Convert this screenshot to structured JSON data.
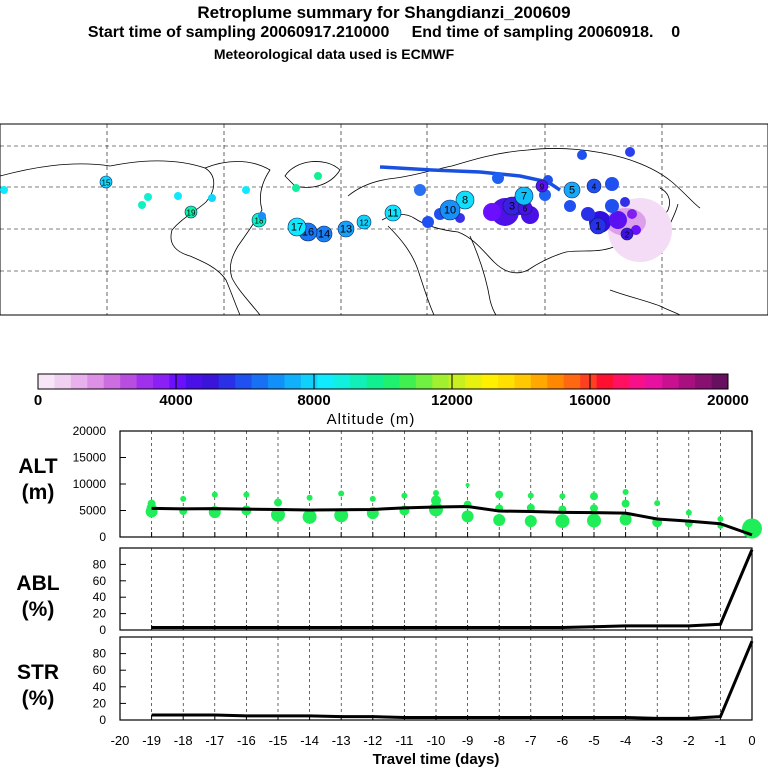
{
  "header": {
    "title": "Retroplume summary for Shangdianzi_200609",
    "start_label": "Start time of sampling 20060917.210000",
    "end_label": "End time of sampling 20060918.",
    "end_value": "0",
    "met_label": "Meteorological data used is ECMWF"
  },
  "colorbar": {
    "title": "Altitude (m)",
    "ticks": [
      "0",
      "4000",
      "8000",
      "12000",
      "16000",
      "20000"
    ],
    "colors": [
      "#f7e6f7",
      "#f0d0f0",
      "#e8b0ec",
      "#de90e6",
      "#cc6ee0",
      "#b84ee0",
      "#a030ee",
      "#8a20f4",
      "#6a10ff",
      "#4a10e8",
      "#3a14d8",
      "#2a30e8",
      "#2050f0",
      "#1870f4",
      "#1090f8",
      "#10b0fa",
      "#10d0fc",
      "#10ecfe",
      "#10f0e0",
      "#10f0b8",
      "#10f090",
      "#20f070",
      "#40f050",
      "#70f040",
      "#a0f030",
      "#c8f020",
      "#e8f010",
      "#fff000",
      "#ffe000",
      "#ffc800",
      "#ffa800",
      "#ff8800",
      "#ff6810",
      "#ff4020",
      "#ff1030",
      "#ff1060",
      "#f8108a",
      "#e810a0",
      "#c81090",
      "#a81080",
      "#881070",
      "#681060"
    ]
  },
  "map": {
    "markers": [
      {
        "label": "1",
        "color": "#2830e8"
      },
      {
        "label": "2",
        "color": "#4010e0"
      },
      {
        "label": "3",
        "color": "#3a20e0"
      },
      {
        "label": "4",
        "color": "#2050f0"
      },
      {
        "label": "5",
        "color": "#18a8f8"
      },
      {
        "label": "6",
        "color": "#4a10e8"
      },
      {
        "label": "7",
        "color": "#10c0fa"
      },
      {
        "label": "8",
        "color": "#10e0fd"
      },
      {
        "label": "9",
        "color": "#5a10f0"
      },
      {
        "label": "10",
        "color": "#1890f8"
      },
      {
        "label": "11",
        "color": "#10e4fe"
      },
      {
        "label": "12",
        "color": "#10d0fc"
      },
      {
        "label": "13",
        "color": "#18a0f8"
      },
      {
        "label": "14",
        "color": "#1880f4"
      },
      {
        "label": "15",
        "color": "#10d8fc"
      },
      {
        "label": "16",
        "color": "#1878f4"
      },
      {
        "label": "17",
        "color": "#10e8fe"
      },
      {
        "label": "18",
        "color": "#10f0c0"
      },
      {
        "label": "19",
        "color": "#10f0a8"
      }
    ]
  },
  "chart_data": [
    {
      "type": "scatter",
      "panel": "ALT",
      "ylabel_line1": "ALT",
      "ylabel_line2": "(m)",
      "ylim": [
        0,
        20000
      ],
      "yticks": [
        0,
        5000,
        10000,
        15000,
        20000
      ],
      "mean_x": [
        -19,
        -18,
        -17,
        -16,
        -15,
        -14,
        -13,
        -12,
        -11,
        -10,
        -9,
        -8,
        -7,
        -6,
        -5,
        -4,
        -3,
        -2,
        -1,
        0
      ],
      "mean_y": [
        5400,
        5300,
        5350,
        5250,
        5200,
        5100,
        5150,
        5200,
        5500,
        5650,
        5750,
        4900,
        4800,
        4650,
        4600,
        4500,
        3400,
        3000,
        2500,
        400
      ],
      "plume_x": [
        -19,
        -19,
        -19,
        -18,
        -18,
        -17,
        -17,
        -16,
        -16,
        -15,
        -15,
        -14,
        -14,
        -13,
        -13,
        -12,
        -12,
        -11,
        -11,
        -10,
        -10,
        -10,
        -9,
        -9,
        -9,
        -8,
        -8,
        -8,
        -7,
        -7,
        -7,
        -6,
        -6,
        -6,
        -5,
        -5,
        -5,
        -4,
        -4,
        -4,
        -3,
        -3,
        -2,
        -2,
        -1,
        -1,
        0
      ],
      "plume_y": [
        4800,
        6300,
        5500,
        4900,
        7200,
        4700,
        8000,
        5000,
        8000,
        4200,
        6500,
        3800,
        7400,
        4100,
        8200,
        4500,
        7200,
        5000,
        7800,
        5200,
        6900,
        8300,
        3900,
        6100,
        9800,
        3200,
        5400,
        8000,
        3000,
        5500,
        7800,
        3000,
        5200,
        7700,
        3100,
        5400,
        7700,
        3300,
        6300,
        8500,
        2800,
        6400,
        2600,
        4600,
        2100,
        3400,
        1600
      ],
      "plume_r": [
        6,
        4,
        5,
        4,
        3,
        6,
        3,
        5,
        3,
        7,
        4,
        7,
        3,
        7,
        3,
        6,
        3,
        5,
        3,
        7,
        5,
        3,
        6,
        4,
        2,
        6,
        4,
        4,
        6,
        4,
        3,
        7,
        4,
        3,
        7,
        4,
        4,
        6,
        4,
        3,
        5,
        3,
        4,
        3,
        3,
        3,
        10
      ]
    },
    {
      "type": "line",
      "panel": "ABL",
      "ylabel_line1": "ABL",
      "ylabel_line2": "(%)",
      "ylim": [
        0,
        100
      ],
      "yticks": [
        0,
        20,
        40,
        60,
        80
      ],
      "x": [
        -19,
        -18,
        -17,
        -16,
        -15,
        -14,
        -13,
        -12,
        -11,
        -10,
        -9,
        -8,
        -7,
        -6,
        -5,
        -4,
        -3,
        -2,
        -1,
        0
      ],
      "y": [
        3,
        3,
        3,
        3,
        3,
        3,
        3,
        3,
        3,
        3,
        3,
        3,
        3,
        3,
        4,
        5,
        5,
        5,
        7,
        98
      ]
    },
    {
      "type": "line",
      "panel": "STR",
      "ylabel_line1": "STR",
      "ylabel_line2": "(%)",
      "ylim": [
        0,
        100
      ],
      "yticks": [
        0,
        20,
        40,
        60,
        80
      ],
      "x": [
        -19,
        -18,
        -17,
        -16,
        -15,
        -14,
        -13,
        -12,
        -11,
        -10,
        -9,
        -8,
        -7,
        -6,
        -5,
        -4,
        -3,
        -2,
        -1,
        0
      ],
      "y": [
        6,
        6,
        6,
        5,
        5,
        5,
        4,
        4,
        3,
        3,
        3,
        3,
        3,
        3,
        3,
        3,
        2,
        2,
        4,
        95
      ],
      "xlabel": "Travel time (days)",
      "xticks": [
        -20,
        -19,
        -18,
        -17,
        -16,
        -15,
        -14,
        -13,
        -12,
        -11,
        -10,
        -9,
        -8,
        -7,
        -6,
        -5,
        -4,
        -3,
        -2,
        -1,
        0
      ],
      "xlim": [
        -20,
        0
      ]
    }
  ]
}
